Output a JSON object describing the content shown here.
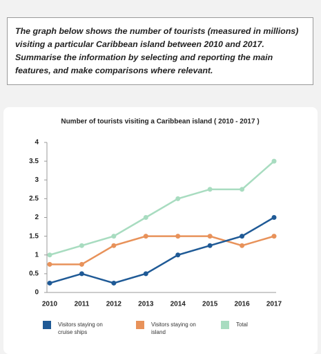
{
  "prompt": "The graph below shows the number of tourists (measured in millions) visiting a particular Caribbean island between 2010 and 2017. Summarise the information by selecting and reporting the main features, and make comparisons where relevant.",
  "chart_data": {
    "type": "line",
    "title": "Number of tourists visiting a Caribbean island ( 2010 - 2017 )",
    "categories": [
      "2010",
      "2011",
      "2012",
      "2013",
      "2014",
      "2015",
      "2016",
      "2017"
    ],
    "series": [
      {
        "name": "Visitors staying on cruise ships",
        "color": "#1f5a96",
        "values": [
          0.25,
          0.5,
          0.25,
          0.5,
          1,
          1.25,
          1.5,
          2
        ]
      },
      {
        "name": "Visitors staying on island",
        "color": "#e8925a",
        "values": [
          0.75,
          0.75,
          1.25,
          1.5,
          1.5,
          1.5,
          1.25,
          1.5
        ]
      },
      {
        "name": "Total",
        "color": "#a8dcc0",
        "values": [
          1,
          1.25,
          1.5,
          2,
          2.5,
          2.75,
          2.75,
          3.5
        ]
      }
    ],
    "ylim": [
      0,
      4
    ],
    "yticks": [
      0,
      0.5,
      1,
      1.5,
      2,
      2.5,
      3,
      3.5,
      4
    ],
    "grid": false
  }
}
